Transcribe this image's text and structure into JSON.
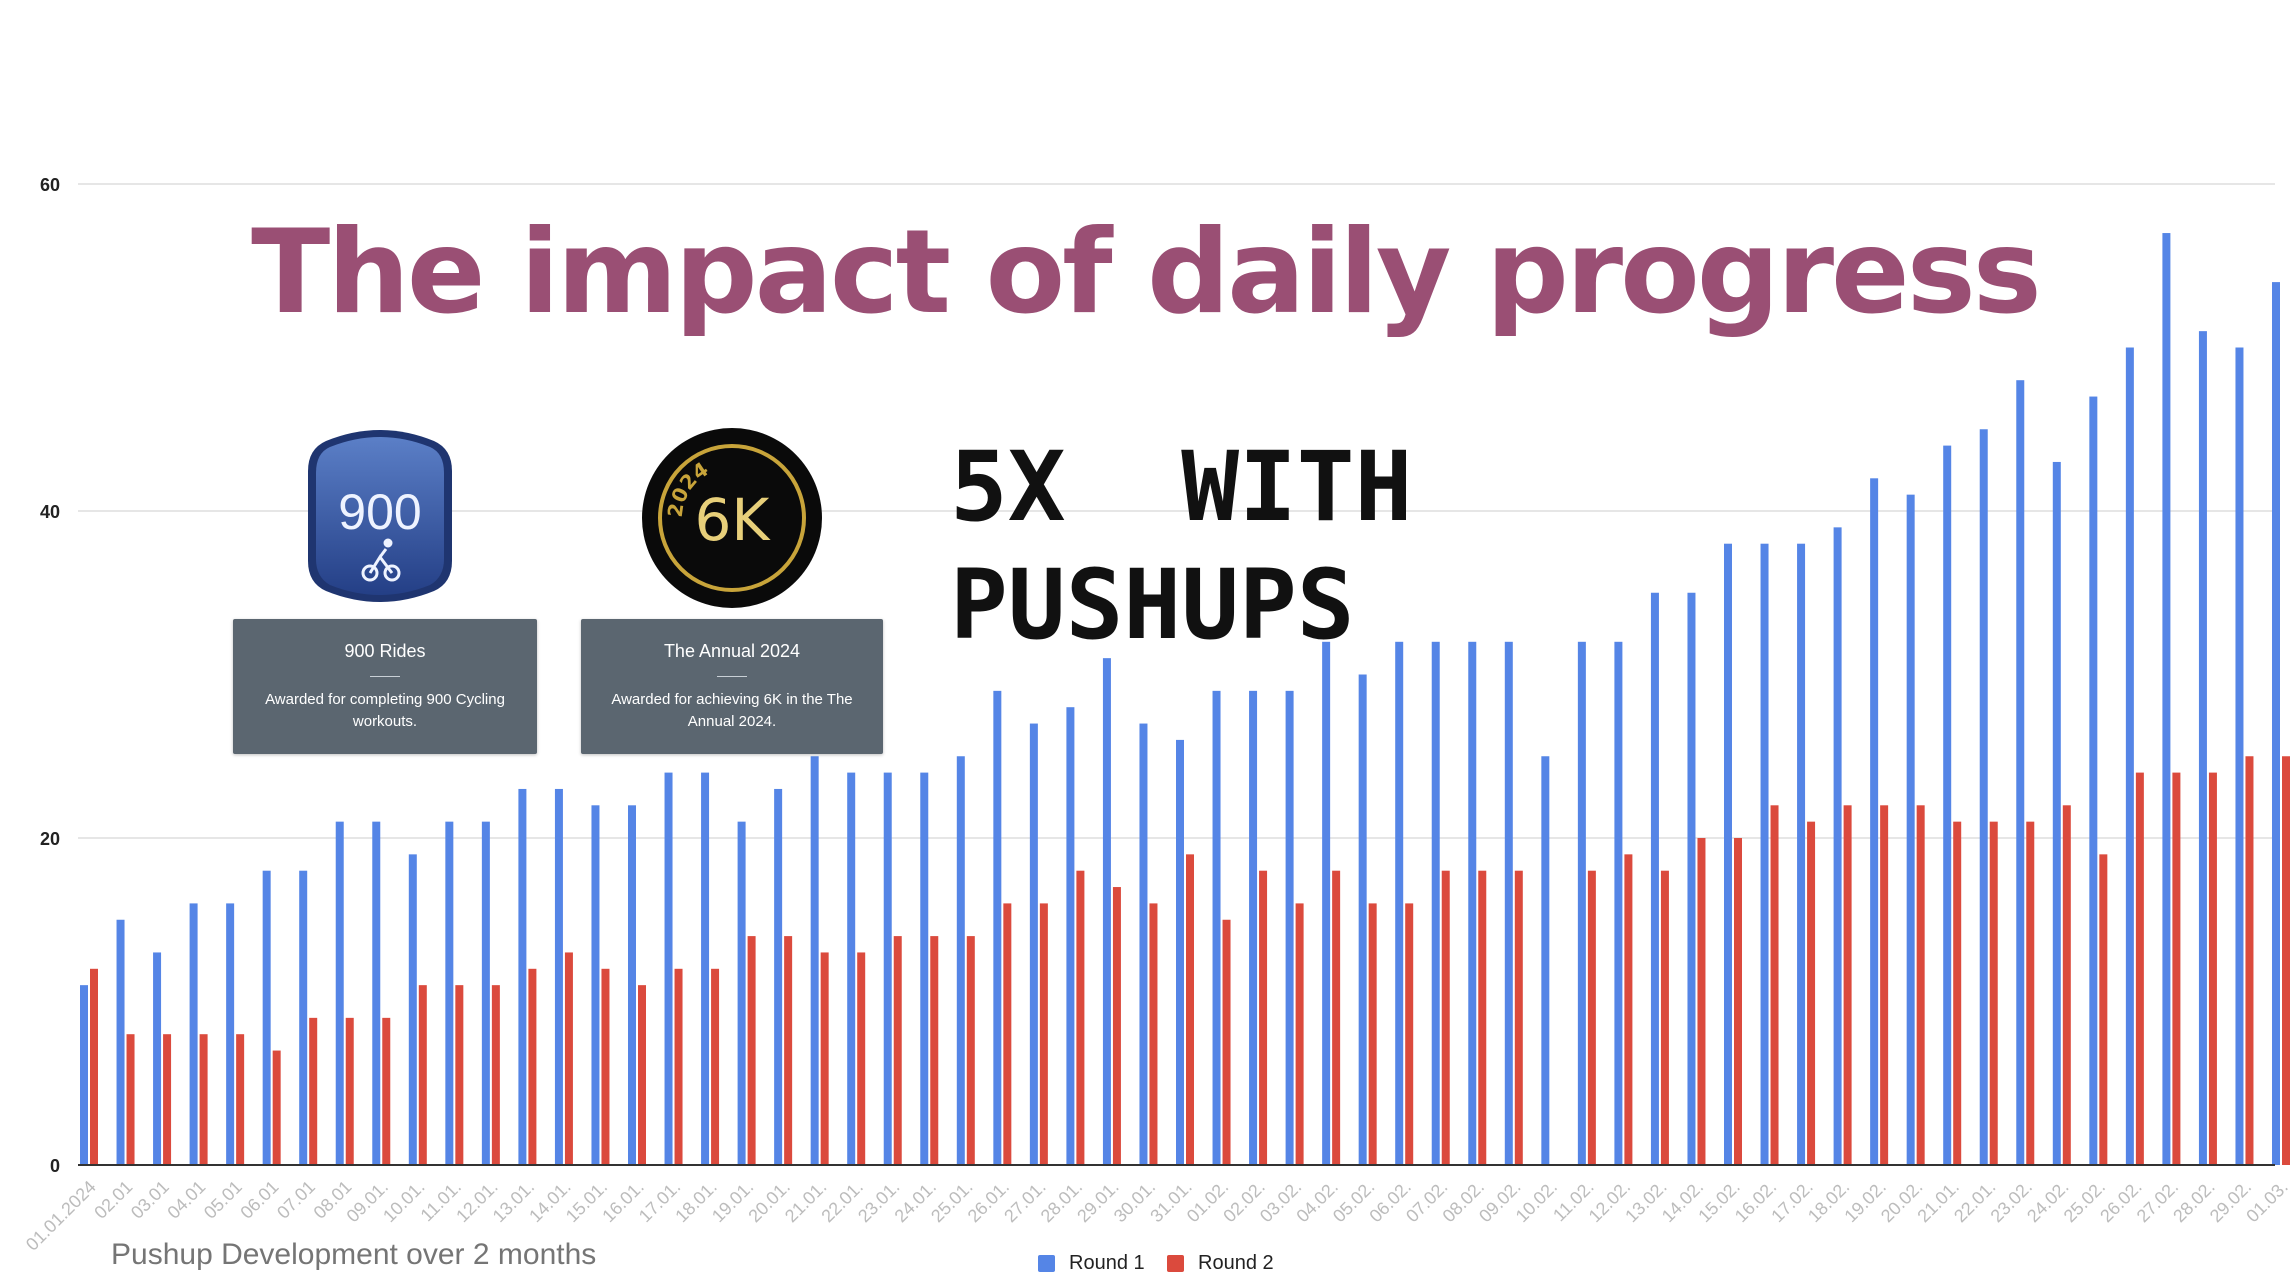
{
  "chart_data": {
    "type": "bar",
    "title": "Pushup Development over 2 months",
    "ylim": [
      0,
      60
    ],
    "yticks": [
      0,
      20,
      40,
      60
    ],
    "grid": true,
    "legend_position": "bottom",
    "categories": [
      "01.01.2024",
      "02.01",
      "03.01",
      "04.01",
      "05.01",
      "06.01",
      "07.01",
      "08.01",
      "09.01.",
      "10.01.",
      "11.01.",
      "12.01.",
      "13.01.",
      "14.01.",
      "15.01.",
      "16.01.",
      "17.01.",
      "18.01.",
      "19.01.",
      "20.01.",
      "21.01.",
      "22.01.",
      "23.01.",
      "24.01.",
      "25.01.",
      "26.01.",
      "27.01.",
      "28.01.",
      "29.01.",
      "30.01.",
      "31.01.",
      "01.02.",
      "02.02.",
      "03.02.",
      "04.02.",
      "05.02.",
      "06.02.",
      "07.02.",
      "08.02.",
      "09.02.",
      "10.02.",
      "11.02.",
      "12.02.",
      "13.02.",
      "14.02.",
      "15.02.",
      "16.02.",
      "17.02.",
      "18.02.",
      "19.02.",
      "20.02.",
      "21.01.",
      "22.01.",
      "23.02.",
      "24.02.",
      "25.02.",
      "26.02.",
      "27.02.",
      "28.02.",
      "29.02.",
      "01.03."
    ],
    "series": [
      {
        "name": "Round 1",
        "color": "#5585e6",
        "values": [
          11,
          15,
          13,
          16,
          16,
          18,
          18,
          21,
          21,
          19,
          21,
          21,
          23,
          23,
          22,
          22,
          24,
          24,
          21,
          23,
          25,
          24,
          24,
          24,
          25,
          29,
          27,
          28,
          31,
          27,
          26,
          29,
          29,
          29,
          32,
          30,
          32,
          32,
          32,
          32,
          25,
          32,
          32,
          35,
          35,
          38,
          38,
          38,
          39,
          42,
          41,
          44,
          45,
          48,
          43,
          47,
          50,
          57,
          51,
          50,
          54
        ]
      },
      {
        "name": "Round 2",
        "color": "#db4a3d",
        "values": [
          12,
          8,
          8,
          8,
          8,
          7,
          9,
          9,
          9,
          11,
          11,
          11,
          12,
          13,
          12,
          11,
          12,
          12,
          14,
          14,
          13,
          13,
          14,
          14,
          14,
          16,
          16,
          18,
          17,
          16,
          19,
          15,
          18,
          16,
          18,
          16,
          16,
          18,
          18,
          18,
          0,
          18,
          19,
          18,
          20,
          20,
          22,
          21,
          22,
          22,
          22,
          21,
          21,
          21,
          22,
          19,
          24,
          24,
          24,
          25,
          25
        ]
      }
    ]
  },
  "overlay": {
    "headline": "The impact of daily progress",
    "sub_line1": "5X  WITH",
    "sub_line2": "PUSHUPS"
  },
  "badges": [
    {
      "label": "900",
      "icon": "cycling-icon",
      "color": "#2f4f95",
      "tooltip_title": "900 Rides",
      "tooltip_text": "Awarded for completing 900 Cycling workouts."
    },
    {
      "label": "6K",
      "ring_text": "2024",
      "color": "#c8a43a",
      "tooltip_title": "The Annual 2024",
      "tooltip_text": "Awarded for achieving 6K in the The Annual 2024."
    }
  ]
}
